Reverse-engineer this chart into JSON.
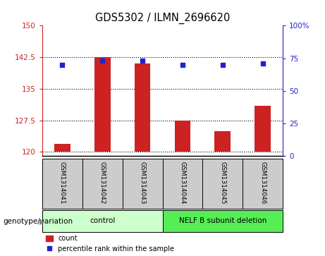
{
  "title": "GDS5302 / ILMN_2696620",
  "samples": [
    "GSM1314041",
    "GSM1314042",
    "GSM1314043",
    "GSM1314044",
    "GSM1314045",
    "GSM1314046"
  ],
  "counts": [
    122.0,
    142.5,
    141.0,
    127.5,
    125.0,
    131.0
  ],
  "percentile_ranks": [
    70,
    73,
    73,
    70,
    70,
    71
  ],
  "ylim_left": [
    119,
    150
  ],
  "ylim_right": [
    0,
    100
  ],
  "yticks_left": [
    120,
    127.5,
    135,
    142.5,
    150
  ],
  "yticks_right": [
    0,
    25,
    50,
    75,
    100
  ],
  "ytick_labels_left": [
    "120",
    "127.5",
    "135",
    "142.5",
    "150"
  ],
  "ytick_labels_right": [
    "0",
    "25",
    "50",
    "75",
    "100%"
  ],
  "bar_color": "#cc2222",
  "dot_color": "#2222cc",
  "base_value": 120,
  "groups": [
    {
      "label": "control",
      "samples": [
        0,
        1,
        2
      ],
      "color": "#ccffcc"
    },
    {
      "label": "NELF B subunit deletion",
      "samples": [
        3,
        4,
        5
      ],
      "color": "#55ee55"
    }
  ],
  "group_label_prefix": "genotype/variation",
  "legend_count_label": "count",
  "legend_percentile_label": "percentile rank within the sample",
  "plot_bg": "#ffffff",
  "label_area_bg": "#cccccc"
}
